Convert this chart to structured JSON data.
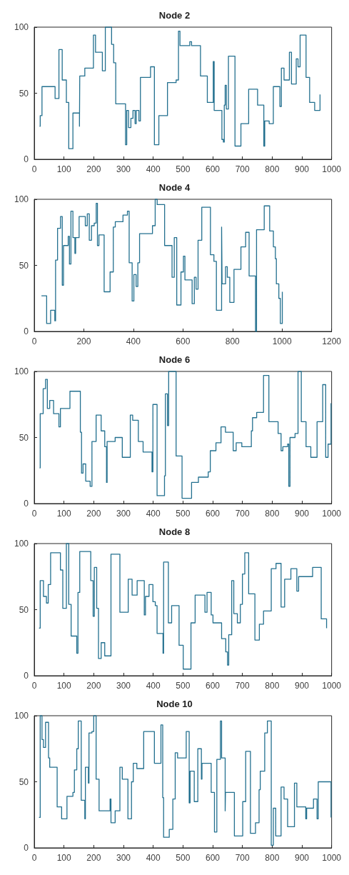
{
  "chart_data": [
    {
      "type": "step",
      "title": "Node 2",
      "color": "#23708f",
      "xlim": [
        0,
        1000
      ],
      "xticks": [
        0,
        100,
        200,
        300,
        400,
        500,
        600,
        700,
        800,
        900,
        1000
      ],
      "ylim": [
        0,
        100
      ],
      "yticks": [
        0,
        50,
        100
      ],
      "x": [
        18,
        20,
        26,
        70,
        83,
        94,
        108,
        116,
        130,
        152,
        153,
        170,
        199,
        206,
        229,
        239,
        260,
        267,
        274,
        307,
        311,
        317,
        325,
        332,
        339,
        343,
        352,
        357,
        391,
        404,
        419,
        448,
        477,
        485,
        490,
        523,
        529,
        559,
        582,
        602,
        605,
        631,
        636,
        639,
        642,
        646,
        653,
        675,
        695,
        721,
        751,
        772,
        775,
        790,
        804,
        826,
        831,
        840,
        858,
        865,
        881,
        887,
        894,
        914,
        926,
        943,
        961
      ],
      "values": [
        25,
        33,
        55,
        46,
        83,
        60,
        43,
        8,
        35,
        25,
        63,
        69,
        94,
        81,
        67,
        100,
        87,
        73,
        42,
        11,
        37,
        24,
        31,
        37,
        27,
        37,
        29,
        62,
        70,
        11,
        33,
        58,
        60,
        97,
        86,
        89,
        86,
        63,
        43,
        74,
        37,
        15,
        13,
        41,
        56,
        38,
        78,
        10,
        27,
        53,
        41,
        10,
        29,
        27,
        55,
        40,
        69,
        60,
        81,
        57,
        76,
        70,
        94,
        62,
        43,
        37,
        49
      ]
    },
    {
      "type": "step",
      "title": "Node 4",
      "color": "#23708f",
      "xlim": [
        0,
        1200
      ],
      "xticks": [
        0,
        200,
        400,
        600,
        800,
        1000,
        1200
      ],
      "ylim": [
        0,
        100
      ],
      "yticks": [
        0,
        50,
        100
      ],
      "x": [
        29,
        50,
        66,
        83,
        86,
        94,
        106,
        113,
        118,
        137,
        142,
        148,
        156,
        164,
        167,
        181,
        206,
        214,
        222,
        231,
        242,
        250,
        255,
        261,
        282,
        306,
        319,
        327,
        358,
        376,
        383,
        395,
        402,
        411,
        418,
        425,
        477,
        488,
        496,
        526,
        556,
        565,
        575,
        592,
        602,
        608,
        637,
        646,
        653,
        661,
        676,
        711,
        725,
        735,
        756,
        758,
        772,
        779,
        789,
        806,
        834,
        853,
        867,
        893,
        897,
        928,
        950,
        965,
        973,
        977,
        987,
        993,
        1001
      ],
      "values": [
        27,
        6,
        16,
        8,
        54,
        78,
        87,
        35,
        65,
        72,
        51,
        91,
        71,
        59,
        71,
        87,
        80,
        89,
        69,
        80,
        82,
        97,
        65,
        73,
        30,
        45,
        79,
        83,
        88,
        91,
        52,
        23,
        43,
        34,
        52,
        74,
        80,
        100,
        96,
        65,
        41,
        71,
        20,
        45,
        57,
        39,
        21,
        41,
        32,
        69,
        94,
        58,
        53,
        16,
        79,
        36,
        49,
        41,
        22,
        47,
        64,
        75,
        42,
        0,
        77,
        95,
        76,
        64,
        55,
        36,
        25,
        6,
        30
      ]
    },
    {
      "type": "step",
      "title": "Node 6",
      "color": "#23708f",
      "xlim": [
        0,
        1000
      ],
      "xticks": [
        0,
        100,
        200,
        300,
        400,
        500,
        600,
        700,
        800,
        900,
        1000
      ],
      "ylim": [
        0,
        100
      ],
      "yticks": [
        0,
        50,
        100
      ],
      "x": [
        18,
        20,
        30,
        38,
        44,
        52,
        65,
        83,
        88,
        120,
        155,
        159,
        164,
        173,
        188,
        194,
        208,
        225,
        237,
        243,
        245,
        272,
        296,
        323,
        331,
        350,
        366,
        396,
        399,
        413,
        438,
        441,
        448,
        452,
        477,
        497,
        529,
        552,
        585,
        592,
        611,
        628,
        643,
        669,
        679,
        698,
        730,
        734,
        748,
        771,
        789,
        820,
        830,
        836,
        852,
        856,
        860,
        877,
        887,
        898,
        914,
        930,
        951,
        970,
        980,
        988,
        998
      ],
      "values": [
        27,
        68,
        87,
        94,
        72,
        78,
        68,
        58,
        72,
        85,
        54,
        23,
        30,
        17,
        13,
        47,
        67,
        55,
        43,
        16,
        47,
        50,
        35,
        67,
        63,
        47,
        39,
        24,
        75,
        6,
        21,
        83,
        59,
        100,
        36,
        4,
        16,
        20,
        24,
        40,
        46,
        58,
        54,
        40,
        46,
        43,
        55,
        65,
        69,
        97,
        62,
        53,
        40,
        43,
        45,
        13,
        50,
        53,
        100,
        62,
        43,
        35,
        62,
        90,
        35,
        45,
        76
      ]
    },
    {
      "type": "step",
      "title": "Node 8",
      "color": "#23708f",
      "xlim": [
        0,
        1000
      ],
      "xticks": [
        0,
        100,
        200,
        300,
        400,
        500,
        600,
        700,
        800,
        900,
        1000
      ],
      "ylim": [
        0,
        100
      ],
      "yticks": [
        0,
        50,
        100
      ],
      "x": [
        16,
        20,
        31,
        41,
        47,
        55,
        88,
        96,
        108,
        116,
        124,
        143,
        147,
        153,
        190,
        198,
        202,
        210,
        216,
        225,
        237,
        258,
        288,
        316,
        329,
        346,
        370,
        374,
        386,
        399,
        407,
        413,
        433,
        435,
        451,
        462,
        487,
        501,
        527,
        541,
        574,
        581,
        595,
        601,
        630,
        644,
        650,
        654,
        664,
        671,
        683,
        693,
        700,
        708,
        721,
        742,
        757,
        771,
        797,
        813,
        830,
        842,
        863,
        883,
        889,
        936,
        965,
        983
      ],
      "values": [
        36,
        72,
        60,
        55,
        69,
        93,
        80,
        51,
        100,
        54,
        30,
        17,
        63,
        94,
        72,
        45,
        82,
        51,
        13,
        25,
        15,
        92,
        48,
        73,
        61,
        72,
        46,
        60,
        69,
        56,
        53,
        32,
        17,
        86,
        40,
        53,
        23,
        5,
        40,
        61,
        48,
        63,
        46,
        40,
        28,
        18,
        8,
        31,
        72,
        47,
        40,
        54,
        77,
        93,
        62,
        27,
        39,
        49,
        81,
        85,
        52,
        73,
        81,
        64,
        75,
        82,
        43,
        36
      ]
    },
    {
      "type": "step",
      "title": "Node 10",
      "color": "#23708f",
      "xlim": [
        0,
        1000
      ],
      "xticks": [
        0,
        100,
        200,
        300,
        400,
        500,
        600,
        700,
        800,
        900,
        1000
      ],
      "ylim": [
        0,
        100
      ],
      "yticks": [
        0,
        50,
        100
      ],
      "x": [
        16,
        20,
        26,
        31,
        38,
        48,
        52,
        77,
        92,
        110,
        130,
        135,
        143,
        148,
        158,
        170,
        172,
        182,
        184,
        194,
        200,
        208,
        218,
        255,
        258,
        272,
        288,
        296,
        315,
        327,
        333,
        345,
        368,
        404,
        426,
        432,
        435,
        454,
        466,
        474,
        482,
        511,
        521,
        524,
        538,
        550,
        562,
        564,
        595,
        606,
        614,
        626,
        630,
        642,
        643,
        673,
        701,
        711,
        727,
        744,
        756,
        760,
        775,
        784,
        797,
        804,
        812,
        830,
        840,
        852,
        875,
        883,
        913,
        916,
        939,
        951,
        955,
        998
      ],
      "values": [
        23,
        100,
        82,
        76,
        95,
        68,
        61,
        31,
        22,
        39,
        42,
        59,
        75,
        96,
        36,
        22,
        61,
        49,
        87,
        88,
        100,
        52,
        28,
        37,
        19,
        28,
        61,
        52,
        22,
        50,
        64,
        60,
        88,
        64,
        93,
        38,
        8,
        14,
        37,
        72,
        68,
        88,
        34,
        58,
        35,
        75,
        52,
        64,
        42,
        12,
        67,
        96,
        68,
        28,
        42,
        9,
        35,
        73,
        11,
        19,
        44,
        58,
        87,
        96,
        2,
        30,
        9,
        46,
        37,
        16,
        49,
        31,
        22,
        30,
        37,
        22,
        50,
        23
      ]
    }
  ]
}
